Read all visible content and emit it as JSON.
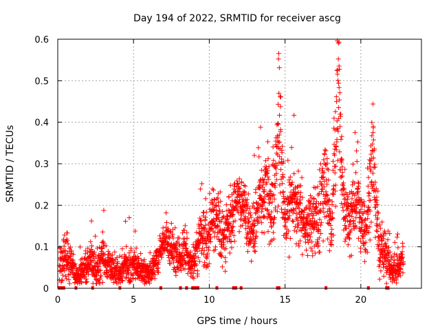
{
  "chart_data": {
    "type": "scatter",
    "title": "Day 194 of 2022, SRMTID for receiver ascg",
    "xlabel": "GPS time / hours",
    "ylabel": "SRMTID / TECUs",
    "xlim": [
      0,
      24
    ],
    "ylim": [
      0,
      0.6
    ],
    "xticks": [
      "0",
      "5",
      "10",
      "15",
      "20"
    ],
    "yticks": [
      "0",
      "0.1",
      "0.2",
      "0.3",
      "0.4",
      "0.5",
      "0.6"
    ],
    "grid": true,
    "marker": "plus",
    "color": "#ff0000",
    "series": [
      {
        "name": "SRMTID",
        "envelope": [
          [
            0.1,
            0.045,
            0.025
          ],
          [
            0.3,
            0.06,
            0.03
          ],
          [
            0.5,
            0.075,
            0.03
          ],
          [
            0.7,
            0.07,
            0.03
          ],
          [
            0.9,
            0.06,
            0.025
          ],
          [
            1.1,
            0.035,
            0.015
          ],
          [
            1.3,
            0.03,
            0.015
          ],
          [
            1.6,
            0.04,
            0.02
          ],
          [
            1.9,
            0.06,
            0.025
          ],
          [
            2.2,
            0.08,
            0.025
          ],
          [
            2.4,
            0.045,
            0.02
          ],
          [
            2.7,
            0.05,
            0.025
          ],
          [
            3.0,
            0.075,
            0.035
          ],
          [
            3.3,
            0.05,
            0.025
          ],
          [
            3.6,
            0.045,
            0.02
          ],
          [
            3.9,
            0.035,
            0.02
          ],
          [
            4.2,
            0.045,
            0.02
          ],
          [
            4.5,
            0.05,
            0.02
          ],
          [
            4.8,
            0.045,
            0.025
          ],
          [
            5.1,
            0.06,
            0.025
          ],
          [
            5.4,
            0.045,
            0.02
          ],
          [
            5.7,
            0.035,
            0.015
          ],
          [
            6.0,
            0.035,
            0.015
          ],
          [
            6.3,
            0.05,
            0.02
          ],
          [
            6.6,
            0.07,
            0.025
          ],
          [
            6.9,
            0.11,
            0.02
          ],
          [
            7.2,
            0.115,
            0.02
          ],
          [
            7.5,
            0.09,
            0.025
          ],
          [
            7.8,
            0.08,
            0.025
          ],
          [
            8.1,
            0.07,
            0.025
          ],
          [
            8.4,
            0.09,
            0.03
          ],
          [
            8.7,
            0.06,
            0.02
          ],
          [
            9.0,
            0.06,
            0.025
          ],
          [
            9.3,
            0.11,
            0.035
          ],
          [
            9.6,
            0.12,
            0.035
          ],
          [
            9.9,
            0.1,
            0.03
          ],
          [
            10.2,
            0.18,
            0.04
          ],
          [
            10.5,
            0.16,
            0.04
          ],
          [
            10.8,
            0.13,
            0.04
          ],
          [
            11.1,
            0.14,
            0.035
          ],
          [
            11.4,
            0.16,
            0.04
          ],
          [
            11.7,
            0.2,
            0.04
          ],
          [
            12.0,
            0.22,
            0.04
          ],
          [
            12.3,
            0.2,
            0.04
          ],
          [
            12.6,
            0.14,
            0.035
          ],
          [
            12.9,
            0.15,
            0.035
          ],
          [
            13.2,
            0.19,
            0.045
          ],
          [
            13.5,
            0.21,
            0.05
          ],
          [
            13.8,
            0.25,
            0.06
          ],
          [
            14.1,
            0.17,
            0.05
          ],
          [
            14.4,
            0.27,
            0.08
          ],
          [
            14.6,
            0.42,
            0.1
          ],
          [
            14.8,
            0.25,
            0.06
          ],
          [
            15.0,
            0.15,
            0.04
          ],
          [
            15.3,
            0.19,
            0.045
          ],
          [
            15.6,
            0.22,
            0.05
          ],
          [
            15.9,
            0.2,
            0.05
          ],
          [
            16.2,
            0.16,
            0.04
          ],
          [
            16.5,
            0.15,
            0.04
          ],
          [
            16.8,
            0.18,
            0.045
          ],
          [
            17.1,
            0.15,
            0.045
          ],
          [
            17.4,
            0.22,
            0.05
          ],
          [
            17.7,
            0.25,
            0.06
          ],
          [
            18.0,
            0.14,
            0.04
          ],
          [
            18.3,
            0.3,
            0.1
          ],
          [
            18.5,
            0.5,
            0.1
          ],
          [
            18.7,
            0.3,
            0.08
          ],
          [
            18.9,
            0.18,
            0.05
          ],
          [
            19.2,
            0.16,
            0.04
          ],
          [
            19.5,
            0.19,
            0.05
          ],
          [
            19.8,
            0.22,
            0.06
          ],
          [
            20.0,
            0.14,
            0.04
          ],
          [
            20.3,
            0.12,
            0.04
          ],
          [
            20.6,
            0.22,
            0.06
          ],
          [
            20.8,
            0.35,
            0.1
          ],
          [
            21.0,
            0.2,
            0.05
          ],
          [
            21.2,
            0.1,
            0.035
          ],
          [
            21.5,
            0.1,
            0.03
          ],
          [
            21.8,
            0.07,
            0.03
          ],
          [
            22.0,
            0.045,
            0.02
          ],
          [
            22.3,
            0.04,
            0.02
          ],
          [
            22.6,
            0.06,
            0.02
          ],
          [
            22.8,
            0.06,
            0.02
          ]
        ],
        "zero_points_x": [
          0.1,
          0.15,
          0.3,
          0.4,
          1.2,
          2.3,
          4.1,
          6.8,
          8.1,
          8.5,
          8.9,
          9.0,
          9.1,
          9.25,
          10.5,
          11.6,
          11.75,
          12.1,
          14.5,
          14.6,
          17.7,
          20.5,
          21.7,
          21.8
        ]
      }
    ]
  }
}
